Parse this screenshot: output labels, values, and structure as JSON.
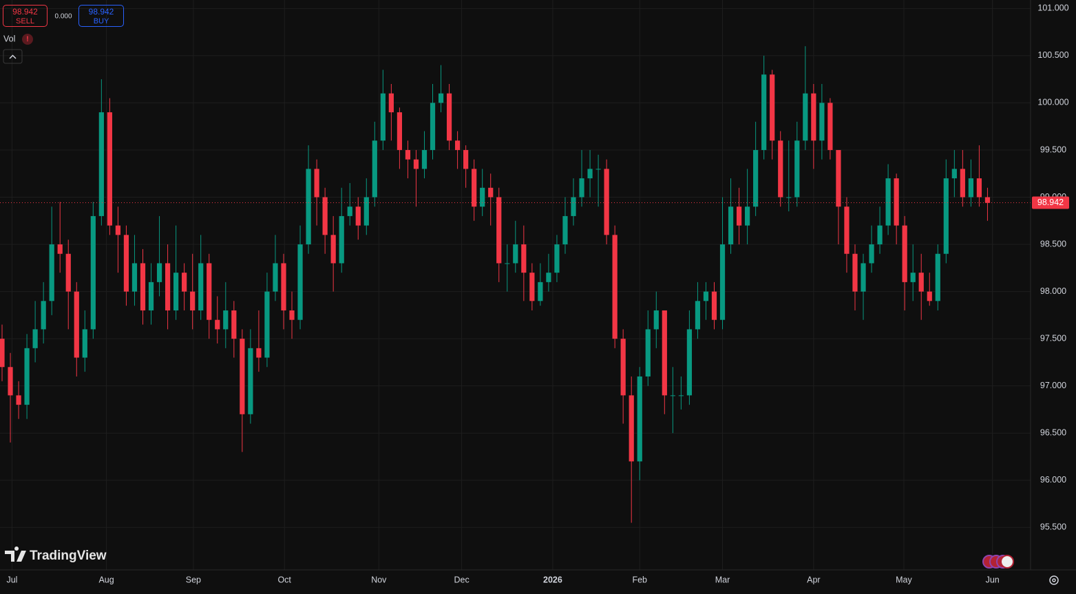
{
  "header": {
    "sell_price": "98.942",
    "sell_label": "SELL",
    "spread": "0.000",
    "buy_price": "98.942",
    "buy_label": "BUY"
  },
  "indicator": {
    "label": "Vol",
    "badge": "!"
  },
  "brand": "TradingView",
  "chart_data": {
    "type": "candlestick",
    "up_color": "#089981",
    "down_color": "#f23645",
    "grid": true,
    "xlim": [
      -0.25,
      124.2
    ],
    "ylim": [
      95.05,
      101.09
    ],
    "xticks": [
      {
        "value": 1.2,
        "label": "Jul"
      },
      {
        "value": 12.6,
        "label": "Aug"
      },
      {
        "value": 23.1,
        "label": "Sep"
      },
      {
        "value": 34.1,
        "label": "Oct"
      },
      {
        "value": 45.5,
        "label": "Nov"
      },
      {
        "value": 55.5,
        "label": "Dec"
      },
      {
        "value": 66.5,
        "label": "2026"
      },
      {
        "value": 77,
        "label": "Feb"
      },
      {
        "value": 87,
        "label": "Mar"
      },
      {
        "value": 98,
        "label": "Apr"
      },
      {
        "value": 108.9,
        "label": "May"
      },
      {
        "value": 119.6,
        "label": "Jun"
      }
    ],
    "yticks": [
      {
        "value": 101,
        "label": "101.000"
      },
      {
        "value": 100.5,
        "label": "100.500"
      },
      {
        "value": 100,
        "label": "100.000"
      },
      {
        "value": 99.5,
        "label": "99.500"
      },
      {
        "value": 99,
        "label": "99.000"
      },
      {
        "value": 98.5,
        "label": "98.500"
      },
      {
        "value": 98,
        "label": "98.000"
      },
      {
        "value": 97.5,
        "label": "97.500"
      },
      {
        "value": 97,
        "label": "97.000"
      },
      {
        "value": 96.5,
        "label": "96.500"
      },
      {
        "value": 96,
        "label": "96.000"
      },
      {
        "value": 95.5,
        "label": "95.500"
      }
    ],
    "last_value": 98.942,
    "open": [
      97.5,
      97.2,
      96.9,
      96.8,
      97.4,
      97.6,
      97.9,
      98.5,
      98.4,
      98.0,
      97.3,
      97.6,
      98.8,
      99.9,
      98.7,
      98.6,
      98.0,
      98.3,
      97.8,
      98.1,
      98.3,
      97.8,
      98.2,
      98.0,
      97.8,
      98.3,
      97.7,
      97.6,
      97.8,
      97.5,
      96.7,
      97.4,
      97.3,
      98.0,
      98.3,
      97.8,
      97.7,
      98.5,
      99.3,
      99.0,
      98.6,
      98.3,
      98.8,
      98.9,
      98.7,
      99.0,
      99.6,
      100.1,
      99.9,
      99.5,
      99.4,
      99.3,
      99.5,
      100.0,
      100.1,
      99.6,
      99.5,
      99.3,
      98.9,
      99.1,
      99.0,
      98.3,
      98.3,
      98.5,
      98.2,
      97.9,
      98.1,
      98.2,
      98.5,
      98.8,
      99.0,
      99.2,
      99.3,
      99.3,
      98.6,
      97.5,
      96.9,
      96.2,
      97.1,
      97.6,
      97.8,
      96.9,
      96.9,
      96.9,
      97.6,
      97.9,
      98.0,
      97.7,
      98.5,
      98.9,
      98.7,
      98.9,
      99.5,
      100.3,
      99.6,
      99.0,
      99.0,
      99.6,
      100.1,
      99.6,
      100.0,
      99.5,
      98.9,
      98.4,
      98.0,
      98.3,
      98.5,
      98.7,
      99.2,
      98.7,
      98.1,
      98.2,
      98.0,
      97.9,
      98.4,
      99.2,
      99.3,
      99.0,
      99.2,
      99.0
    ],
    "high": [
      97.65,
      97.35,
      97.05,
      97.55,
      97.9,
      98.1,
      98.9,
      98.95,
      98.55,
      98.1,
      97.8,
      98.95,
      100.25,
      100.05,
      98.9,
      98.7,
      98.6,
      98.45,
      98.3,
      98.8,
      98.5,
      98.7,
      98.3,
      98.4,
      98.6,
      98.4,
      97.95,
      98.1,
      97.9,
      97.6,
      97.6,
      97.8,
      98.2,
      98.6,
      98.4,
      98.0,
      98.7,
      99.55,
      99.4,
      99.1,
      98.8,
      99.1,
      99.15,
      99.0,
      99.2,
      99.8,
      100.35,
      100.2,
      99.95,
      99.6,
      99.5,
      99.7,
      100.2,
      100.4,
      100.2,
      99.7,
      99.55,
      99.4,
      99.3,
      99.25,
      99.1,
      98.5,
      98.75,
      98.7,
      98.3,
      98.3,
      98.4,
      98.6,
      99.0,
      99.2,
      99.5,
      99.5,
      99.45,
      99.4,
      98.7,
      97.6,
      97.1,
      97.2,
      97.8,
      98.0,
      97.8,
      97.2,
      97.1,
      97.8,
      98.1,
      98.1,
      98.1,
      99.0,
      99.2,
      99.1,
      99.3,
      99.8,
      100.5,
      100.35,
      99.7,
      99.6,
      99.8,
      100.6,
      100.2,
      100.2,
      100.05,
      99.5,
      99.0,
      98.5,
      98.4,
      98.7,
      98.9,
      99.35,
      99.25,
      98.8,
      98.5,
      98.4,
      98.2,
      98.5,
      99.4,
      99.5,
      99.5,
      99.4,
      99.55,
      99.1
    ],
    "low": [
      97.05,
      96.4,
      96.65,
      96.65,
      97.25,
      97.45,
      97.75,
      98.2,
      97.6,
      97.1,
      97.15,
      97.5,
      98.7,
      98.6,
      98.2,
      97.85,
      97.85,
      97.65,
      97.65,
      97.95,
      97.6,
      97.7,
      97.8,
      97.6,
      97.7,
      97.5,
      97.45,
      97.4,
      97.3,
      96.3,
      96.6,
      97.15,
      97.2,
      97.9,
      97.6,
      97.5,
      97.6,
      98.4,
      98.7,
      98.4,
      98.0,
      98.2,
      98.7,
      98.55,
      98.6,
      98.9,
      99.5,
      99.6,
      99.3,
      99.2,
      98.9,
      99.2,
      99.4,
      99.9,
      99.5,
      99.3,
      99.1,
      98.75,
      98.8,
      98.7,
      98.1,
      98.0,
      98.2,
      97.9,
      97.8,
      97.85,
      98.0,
      98.1,
      98.4,
      98.7,
      98.9,
      99.0,
      98.9,
      98.5,
      97.4,
      96.6,
      95.55,
      96.0,
      97.0,
      97.4,
      96.7,
      96.5,
      96.75,
      96.8,
      97.5,
      97.7,
      97.6,
      97.6,
      98.4,
      98.5,
      98.5,
      98.8,
      99.4,
      99.4,
      98.9,
      98.85,
      98.9,
      99.5,
      99.3,
      99.4,
      99.4,
      98.5,
      98.2,
      97.8,
      97.7,
      98.2,
      98.4,
      98.6,
      98.5,
      97.8,
      97.9,
      97.7,
      97.85,
      97.8,
      98.3,
      99.0,
      98.9,
      98.9,
      98.9,
      98.75
    ],
    "close": [
      97.2,
      96.9,
      96.8,
      97.4,
      97.6,
      97.9,
      98.5,
      98.4,
      98.0,
      97.3,
      97.6,
      98.8,
      99.9,
      98.7,
      98.6,
      98.0,
      98.3,
      97.8,
      98.1,
      98.3,
      97.8,
      98.2,
      98.0,
      97.8,
      98.3,
      97.7,
      97.6,
      97.8,
      97.5,
      96.7,
      97.4,
      97.3,
      98.0,
      98.3,
      97.8,
      97.7,
      98.5,
      99.3,
      99.0,
      98.6,
      98.3,
      98.8,
      98.9,
      98.7,
      99.0,
      99.6,
      100.1,
      99.9,
      99.5,
      99.4,
      99.3,
      99.5,
      100.0,
      100.1,
      99.6,
      99.5,
      99.3,
      98.9,
      99.1,
      99.0,
      98.3,
      98.3,
      98.5,
      98.2,
      97.9,
      98.1,
      98.2,
      98.5,
      98.8,
      99.0,
      99.2,
      99.3,
      99.3,
      98.6,
      97.5,
      96.9,
      96.2,
      97.1,
      97.6,
      97.8,
      96.9,
      96.9,
      96.9,
      97.6,
      97.9,
      98.0,
      97.7,
      98.5,
      98.9,
      98.7,
      98.9,
      99.5,
      100.3,
      99.6,
      99.0,
      99.0,
      99.6,
      100.1,
      99.6,
      100.0,
      99.5,
      98.9,
      98.4,
      98.0,
      98.3,
      98.5,
      98.7,
      99.2,
      98.7,
      98.1,
      98.2,
      98.0,
      97.9,
      98.4,
      99.2,
      99.3,
      99.0,
      99.2,
      99.0,
      98.94
    ]
  }
}
